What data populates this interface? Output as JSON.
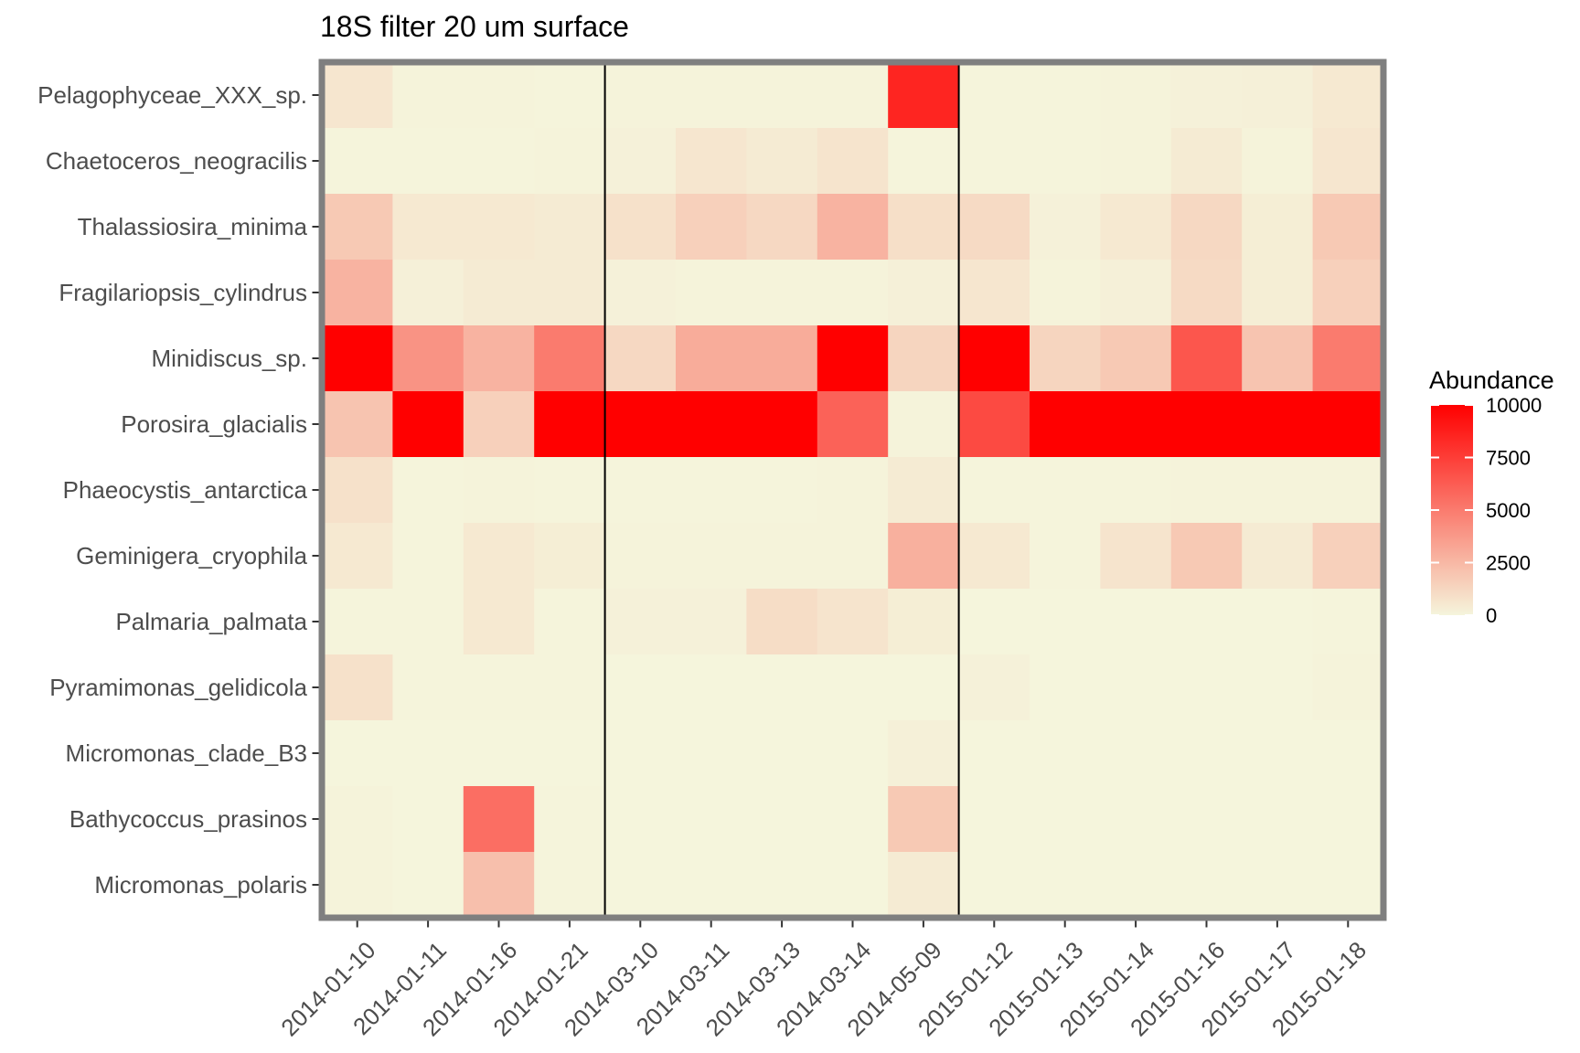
{
  "chart_data": {
    "type": "heatmap",
    "title": "18S filter 20 um surface",
    "xlabel": "",
    "ylabel": "",
    "x": [
      "2014-01-10",
      "2014-01-11",
      "2014-01-16",
      "2014-01-21",
      "2014-03-10",
      "2014-03-11",
      "2014-03-13",
      "2014-03-14",
      "2014-05-09",
      "2015-01-12",
      "2015-01-13",
      "2015-01-14",
      "2015-01-16",
      "2015-01-17",
      "2015-01-18"
    ],
    "y": [
      "Pelagophyceae_XXX_sp.",
      "Chaetoceros_neogracilis",
      "Thalassiosira_minima",
      "Fragilariopsis_cylindrus",
      "Minidiscus_sp.",
      "Porosira_glacialis",
      "Phaeocystis_antarctica",
      "Geminigera_cryophila",
      "Palmaria_palmata",
      "Pyramimonas_gelidicola",
      "Micromonas_clade_B3",
      "Bathycoccus_prasinos",
      "Micromonas_polaris"
    ],
    "values": [
      [
        600,
        100,
        100,
        50,
        80,
        80,
        80,
        80,
        8500,
        50,
        50,
        100,
        150,
        200,
        500
      ],
      [
        30,
        50,
        50,
        80,
        150,
        600,
        400,
        700,
        50,
        50,
        50,
        100,
        400,
        100,
        600
      ],
      [
        1800,
        500,
        500,
        400,
        800,
        1500,
        1200,
        2700,
        900,
        1100,
        150,
        500,
        1200,
        300,
        1800
      ],
      [
        2700,
        200,
        400,
        400,
        150,
        100,
        100,
        100,
        200,
        600,
        100,
        200,
        1100,
        300,
        1500
      ],
      [
        10000,
        4000,
        2700,
        5000,
        1200,
        3000,
        3000,
        10000,
        1300,
        10000,
        1300,
        1800,
        6500,
        2000,
        5000
      ],
      [
        2000,
        10000,
        1500,
        10000,
        10000,
        10000,
        10000,
        6000,
        100,
        7000,
        10000,
        10000,
        10000,
        10000,
        10000
      ],
      [
        800,
        50,
        100,
        50,
        50,
        50,
        50,
        100,
        400,
        50,
        50,
        50,
        100,
        100,
        100
      ],
      [
        500,
        50,
        500,
        300,
        100,
        100,
        100,
        100,
        2800,
        500,
        50,
        700,
        1800,
        400,
        1500
      ],
      [
        30,
        30,
        500,
        30,
        150,
        150,
        1000,
        700,
        300,
        20,
        20,
        20,
        20,
        20,
        30
      ],
      [
        800,
        30,
        50,
        30,
        20,
        20,
        20,
        20,
        20,
        150,
        20,
        20,
        20,
        20,
        100
      ],
      [
        20,
        20,
        20,
        20,
        20,
        20,
        20,
        20,
        200,
        20,
        20,
        20,
        20,
        20,
        20
      ],
      [
        100,
        20,
        5500,
        50,
        20,
        20,
        20,
        20,
        1800,
        20,
        20,
        20,
        20,
        20,
        20
      ],
      [
        100,
        20,
        2200,
        30,
        20,
        20,
        20,
        20,
        400,
        20,
        20,
        20,
        20,
        20,
        20
      ]
    ],
    "vertical_lines_after": [
      "2014-01-21",
      "2014-05-09"
    ],
    "colorbar": {
      "title": "Abundance",
      "range": [
        0,
        10000
      ],
      "ticks": [
        "10000",
        "7500",
        "5000",
        "2500",
        "0"
      ],
      "tick_values": [
        10000,
        7500,
        5000,
        2500,
        0
      ],
      "low_color": "#F5F5DC",
      "high_color": "#FF0000"
    },
    "legend_position": "right",
    "grid": false,
    "panel_border_color": "#7F7F7F"
  }
}
